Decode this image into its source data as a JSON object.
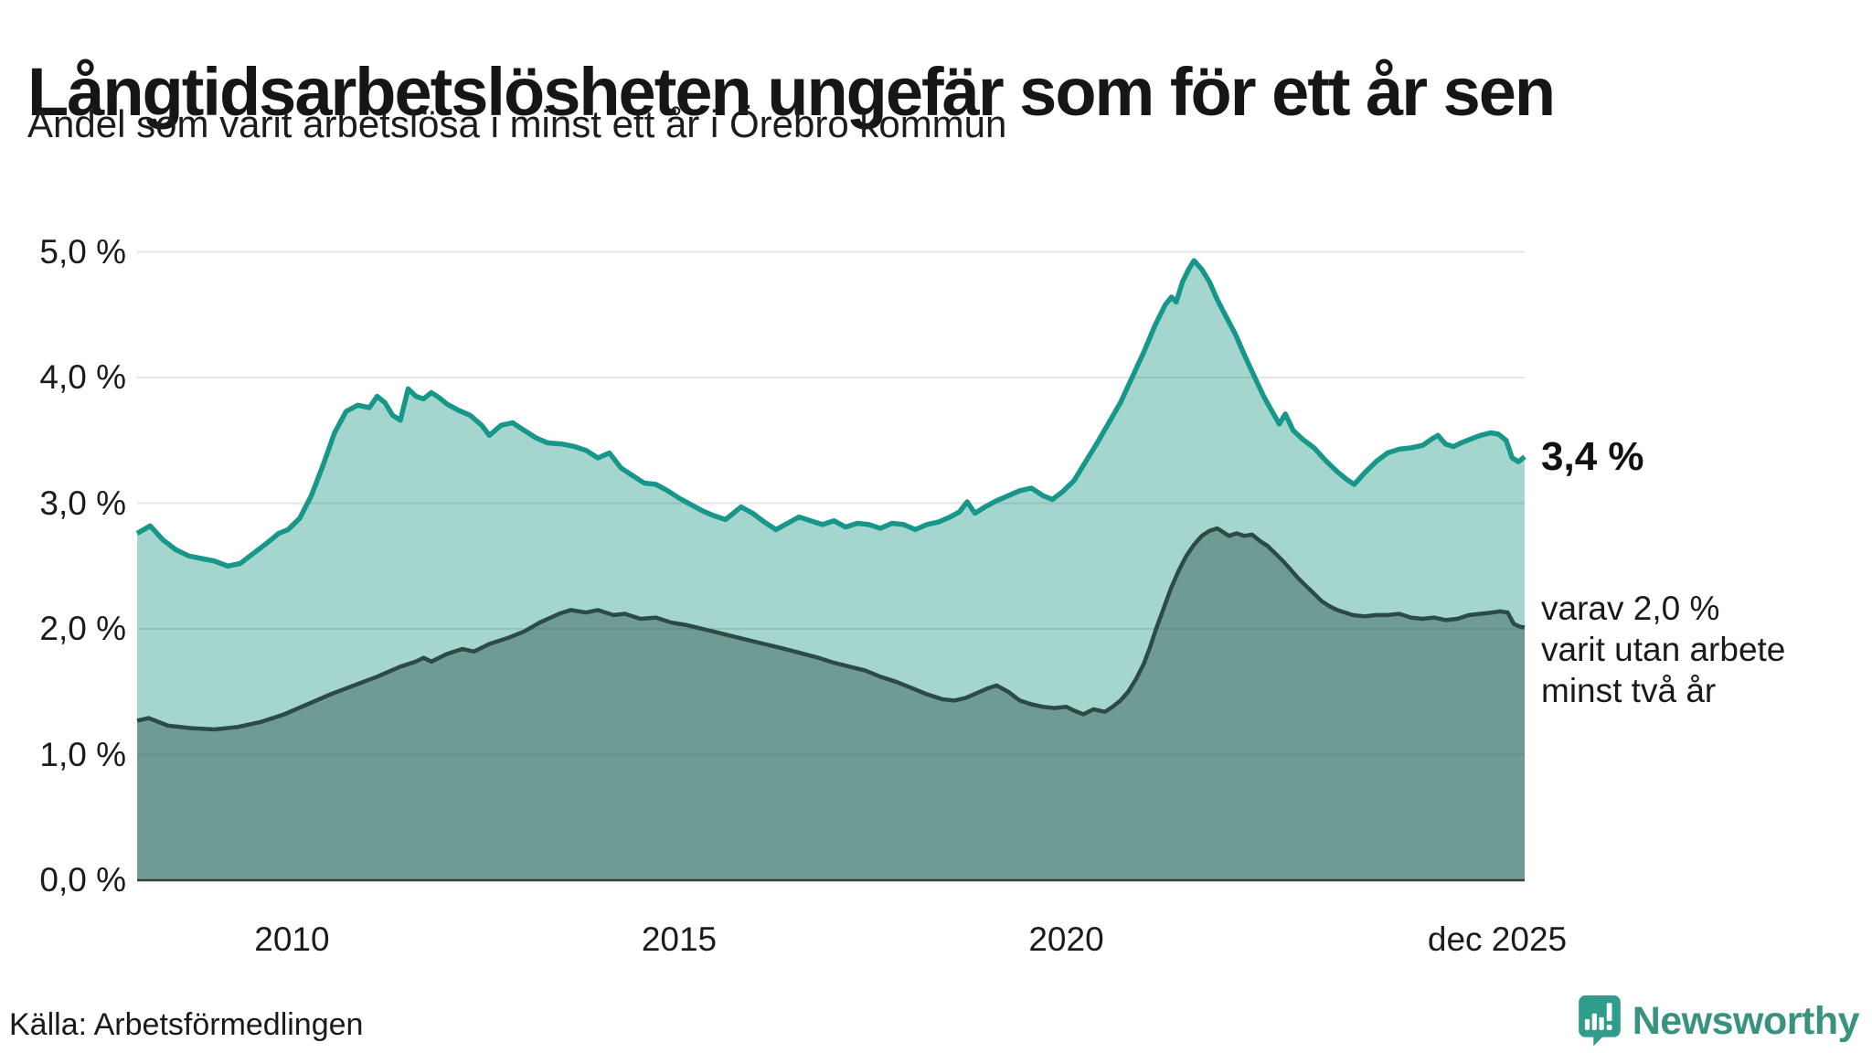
{
  "header": {
    "title": "Långtidsarbetslösheten ungefär som för ett år sen",
    "subtitle": "Andel som varit arbetslösa i minst ett år i Örebro kommun"
  },
  "annotations": {
    "latest_value": "3,4 %",
    "secondary_lines": [
      "varav 2,0 %",
      "varit utan arbete",
      "minst två år"
    ]
  },
  "footer": {
    "source": "Källa: Arbetsförmedlingen",
    "brand": "Newsworthy"
  },
  "colors": {
    "teal_line": "#17978a",
    "light_fill": "#a5d6ce",
    "dark_line": "#2d4b46",
    "dark_fill": "#6f9b95",
    "gridline": "#e4e4e8",
    "axis": "#3c3c3c",
    "text": "#1a1a1a",
    "brand_teal": "#38927f",
    "brand_icon": "#2f9c8c"
  },
  "chart_data": {
    "type": "area",
    "title": "Långtidsarbetslösheten ungefär som för ett år sen",
    "subtitle": "Andel som varit arbetslösa i minst ett år i Örebro kommun",
    "x_range": [
      2008.0,
      2025.92
    ],
    "y_range": [
      0,
      5
    ],
    "grid": "horizontal",
    "legend_position": "right-annotations",
    "x_ticks": [
      {
        "label": "2010",
        "year": 2010,
        "dx": 0
      },
      {
        "label": "2015",
        "year": 2015,
        "dx": 0
      },
      {
        "label": "2020",
        "year": 2020,
        "dx": 0
      },
      {
        "label": "dec 2025",
        "year": 2025.92,
        "dx": -30
      }
    ],
    "y_ticks": [
      {
        "label": "0,0 %",
        "value": 0
      },
      {
        "label": "1,0 %",
        "value": 1
      },
      {
        "label": "2,0 %",
        "value": 2
      },
      {
        "label": "3,0 %",
        "value": 3
      },
      {
        "label": "4,0 %",
        "value": 4
      },
      {
        "label": "5,0 %",
        "value": 5
      }
    ],
    "series": [
      {
        "name": "Arbetslösa minst ett år",
        "latest_label": "3,4 %",
        "latest_value": 3.37,
        "line_color": "#17978a",
        "fill_color": "#a5d6ce",
        "line_width": 5.5,
        "points": [
          [
            2008.0,
            2.76
          ],
          [
            2008.17,
            2.82
          ],
          [
            2008.33,
            2.71
          ],
          [
            2008.5,
            2.63
          ],
          [
            2008.67,
            2.58
          ],
          [
            2008.83,
            2.56
          ],
          [
            2009.0,
            2.54
          ],
          [
            2009.17,
            2.5
          ],
          [
            2009.33,
            2.52
          ],
          [
            2009.5,
            2.6
          ],
          [
            2009.67,
            2.68
          ],
          [
            2009.83,
            2.76
          ],
          [
            2009.95,
            2.79
          ],
          [
            2010.1,
            2.88
          ],
          [
            2010.25,
            3.06
          ],
          [
            2010.4,
            3.3
          ],
          [
            2010.55,
            3.56
          ],
          [
            2010.7,
            3.73
          ],
          [
            2010.85,
            3.78
          ],
          [
            2011.0,
            3.76
          ],
          [
            2011.1,
            3.85
          ],
          [
            2011.2,
            3.8
          ],
          [
            2011.3,
            3.7
          ],
          [
            2011.4,
            3.66
          ],
          [
            2011.5,
            3.91
          ],
          [
            2011.6,
            3.85
          ],
          [
            2011.7,
            3.83
          ],
          [
            2011.8,
            3.88
          ],
          [
            2011.9,
            3.84
          ],
          [
            2012.0,
            3.79
          ],
          [
            2012.15,
            3.74
          ],
          [
            2012.3,
            3.7
          ],
          [
            2012.45,
            3.62
          ],
          [
            2012.55,
            3.54
          ],
          [
            2012.7,
            3.62
          ],
          [
            2012.85,
            3.64
          ],
          [
            2013.0,
            3.58
          ],
          [
            2013.15,
            3.52
          ],
          [
            2013.3,
            3.48
          ],
          [
            2013.5,
            3.47
          ],
          [
            2013.65,
            3.45
          ],
          [
            2013.8,
            3.42
          ],
          [
            2013.95,
            3.36
          ],
          [
            2014.1,
            3.4
          ],
          [
            2014.25,
            3.28
          ],
          [
            2014.4,
            3.22
          ],
          [
            2014.55,
            3.16
          ],
          [
            2014.7,
            3.15
          ],
          [
            2014.85,
            3.1
          ],
          [
            2015.0,
            3.04
          ],
          [
            2015.15,
            2.99
          ],
          [
            2015.3,
            2.94
          ],
          [
            2015.45,
            2.9
          ],
          [
            2015.6,
            2.87
          ],
          [
            2015.8,
            2.97
          ],
          [
            2015.95,
            2.92
          ],
          [
            2016.1,
            2.85
          ],
          [
            2016.25,
            2.79
          ],
          [
            2016.4,
            2.84
          ],
          [
            2016.55,
            2.89
          ],
          [
            2016.7,
            2.86
          ],
          [
            2016.85,
            2.83
          ],
          [
            2017.0,
            2.86
          ],
          [
            2017.15,
            2.81
          ],
          [
            2017.3,
            2.84
          ],
          [
            2017.45,
            2.83
          ],
          [
            2017.6,
            2.8
          ],
          [
            2017.75,
            2.84
          ],
          [
            2017.9,
            2.83
          ],
          [
            2018.05,
            2.79
          ],
          [
            2018.2,
            2.83
          ],
          [
            2018.35,
            2.85
          ],
          [
            2018.5,
            2.89
          ],
          [
            2018.62,
            2.93
          ],
          [
            2018.72,
            3.01
          ],
          [
            2018.82,
            2.92
          ],
          [
            2018.95,
            2.97
          ],
          [
            2019.1,
            3.02
          ],
          [
            2019.25,
            3.06
          ],
          [
            2019.4,
            3.1
          ],
          [
            2019.55,
            3.12
          ],
          [
            2019.7,
            3.06
          ],
          [
            2019.82,
            3.03
          ],
          [
            2019.95,
            3.09
          ],
          [
            2020.1,
            3.18
          ],
          [
            2020.25,
            3.33
          ],
          [
            2020.4,
            3.48
          ],
          [
            2020.55,
            3.64
          ],
          [
            2020.7,
            3.8
          ],
          [
            2020.85,
            4.0
          ],
          [
            2021.0,
            4.2
          ],
          [
            2021.15,
            4.42
          ],
          [
            2021.28,
            4.58
          ],
          [
            2021.36,
            4.64
          ],
          [
            2021.42,
            4.6
          ],
          [
            2021.5,
            4.76
          ],
          [
            2021.58,
            4.86
          ],
          [
            2021.65,
            4.93
          ],
          [
            2021.75,
            4.86
          ],
          [
            2021.85,
            4.76
          ],
          [
            2021.95,
            4.62
          ],
          [
            2022.05,
            4.5
          ],
          [
            2022.18,
            4.35
          ],
          [
            2022.3,
            4.18
          ],
          [
            2022.42,
            4.02
          ],
          [
            2022.55,
            3.85
          ],
          [
            2022.65,
            3.74
          ],
          [
            2022.75,
            3.63
          ],
          [
            2022.83,
            3.71
          ],
          [
            2022.93,
            3.58
          ],
          [
            2023.05,
            3.51
          ],
          [
            2023.2,
            3.44
          ],
          [
            2023.35,
            3.34
          ],
          [
            2023.5,
            3.25
          ],
          [
            2023.62,
            3.19
          ],
          [
            2023.72,
            3.15
          ],
          [
            2023.85,
            3.24
          ],
          [
            2024.0,
            3.33
          ],
          [
            2024.15,
            3.4
          ],
          [
            2024.3,
            3.43
          ],
          [
            2024.45,
            3.44
          ],
          [
            2024.6,
            3.46
          ],
          [
            2024.72,
            3.51
          ],
          [
            2024.8,
            3.54
          ],
          [
            2024.9,
            3.47
          ],
          [
            2025.0,
            3.45
          ],
          [
            2025.1,
            3.48
          ],
          [
            2025.22,
            3.51
          ],
          [
            2025.35,
            3.54
          ],
          [
            2025.48,
            3.56
          ],
          [
            2025.58,
            3.55
          ],
          [
            2025.68,
            3.5
          ],
          [
            2025.76,
            3.36
          ],
          [
            2025.84,
            3.33
          ],
          [
            2025.92,
            3.37
          ]
        ]
      },
      {
        "name": "Varav utan arbete minst två år",
        "latest_label": "2,0 %",
        "latest_value": 2.01,
        "line_color": "#2d4b46",
        "fill_color": "#6f9b95",
        "line_width": 4.5,
        "points": [
          [
            2008.0,
            1.27
          ],
          [
            2008.15,
            1.29
          ],
          [
            2008.4,
            1.23
          ],
          [
            2008.7,
            1.21
          ],
          [
            2009.0,
            1.2
          ],
          [
            2009.3,
            1.22
          ],
          [
            2009.6,
            1.26
          ],
          [
            2009.9,
            1.32
          ],
          [
            2010.2,
            1.4
          ],
          [
            2010.5,
            1.48
          ],
          [
            2010.8,
            1.55
          ],
          [
            2011.1,
            1.62
          ],
          [
            2011.4,
            1.7
          ],
          [
            2011.6,
            1.74
          ],
          [
            2011.7,
            1.77
          ],
          [
            2011.8,
            1.74
          ],
          [
            2012.0,
            1.8
          ],
          [
            2012.2,
            1.84
          ],
          [
            2012.35,
            1.82
          ],
          [
            2012.55,
            1.88
          ],
          [
            2012.8,
            1.93
          ],
          [
            2013.0,
            1.98
          ],
          [
            2013.2,
            2.05
          ],
          [
            2013.45,
            2.12
          ],
          [
            2013.6,
            2.15
          ],
          [
            2013.8,
            2.13
          ],
          [
            2013.95,
            2.15
          ],
          [
            2014.15,
            2.11
          ],
          [
            2014.3,
            2.12
          ],
          [
            2014.5,
            2.08
          ],
          [
            2014.7,
            2.09
          ],
          [
            2014.9,
            2.05
          ],
          [
            2015.1,
            2.03
          ],
          [
            2015.3,
            2.0
          ],
          [
            2015.5,
            1.97
          ],
          [
            2015.7,
            1.94
          ],
          [
            2015.9,
            1.91
          ],
          [
            2016.1,
            1.88
          ],
          [
            2016.3,
            1.85
          ],
          [
            2016.55,
            1.81
          ],
          [
            2016.8,
            1.77
          ],
          [
            2017.0,
            1.73
          ],
          [
            2017.2,
            1.7
          ],
          [
            2017.4,
            1.67
          ],
          [
            2017.6,
            1.62
          ],
          [
            2017.8,
            1.58
          ],
          [
            2018.0,
            1.53
          ],
          [
            2018.2,
            1.48
          ],
          [
            2018.4,
            1.44
          ],
          [
            2018.55,
            1.43
          ],
          [
            2018.7,
            1.45
          ],
          [
            2018.85,
            1.49
          ],
          [
            2019.0,
            1.53
          ],
          [
            2019.1,
            1.55
          ],
          [
            2019.25,
            1.5
          ],
          [
            2019.4,
            1.43
          ],
          [
            2019.55,
            1.4
          ],
          [
            2019.7,
            1.38
          ],
          [
            2019.85,
            1.37
          ],
          [
            2020.0,
            1.38
          ],
          [
            2020.1,
            1.35
          ],
          [
            2020.22,
            1.32
          ],
          [
            2020.35,
            1.36
          ],
          [
            2020.5,
            1.34
          ],
          [
            2020.6,
            1.38
          ],
          [
            2020.7,
            1.43
          ],
          [
            2020.8,
            1.5
          ],
          [
            2020.9,
            1.6
          ],
          [
            2021.0,
            1.72
          ],
          [
            2021.08,
            1.85
          ],
          [
            2021.16,
            2.0
          ],
          [
            2021.25,
            2.15
          ],
          [
            2021.35,
            2.32
          ],
          [
            2021.45,
            2.46
          ],
          [
            2021.55,
            2.58
          ],
          [
            2021.65,
            2.67
          ],
          [
            2021.75,
            2.74
          ],
          [
            2021.85,
            2.78
          ],
          [
            2021.95,
            2.8
          ],
          [
            2022.05,
            2.76
          ],
          [
            2022.1,
            2.74
          ],
          [
            2022.2,
            2.76
          ],
          [
            2022.3,
            2.74
          ],
          [
            2022.4,
            2.75
          ],
          [
            2022.5,
            2.7
          ],
          [
            2022.6,
            2.66
          ],
          [
            2022.7,
            2.6
          ],
          [
            2022.8,
            2.54
          ],
          [
            2022.9,
            2.47
          ],
          [
            2023.0,
            2.4
          ],
          [
            2023.1,
            2.34
          ],
          [
            2023.2,
            2.28
          ],
          [
            2023.3,
            2.22
          ],
          [
            2023.4,
            2.18
          ],
          [
            2023.5,
            2.15
          ],
          [
            2023.6,
            2.13
          ],
          [
            2023.7,
            2.11
          ],
          [
            2023.85,
            2.1
          ],
          [
            2024.0,
            2.11
          ],
          [
            2024.15,
            2.11
          ],
          [
            2024.3,
            2.12
          ],
          [
            2024.45,
            2.09
          ],
          [
            2024.6,
            2.08
          ],
          [
            2024.75,
            2.09
          ],
          [
            2024.9,
            2.07
          ],
          [
            2025.05,
            2.08
          ],
          [
            2025.2,
            2.11
          ],
          [
            2025.35,
            2.12
          ],
          [
            2025.5,
            2.13
          ],
          [
            2025.6,
            2.14
          ],
          [
            2025.7,
            2.13
          ],
          [
            2025.78,
            2.04
          ],
          [
            2025.85,
            2.02
          ],
          [
            2025.92,
            2.01
          ]
        ]
      }
    ]
  }
}
